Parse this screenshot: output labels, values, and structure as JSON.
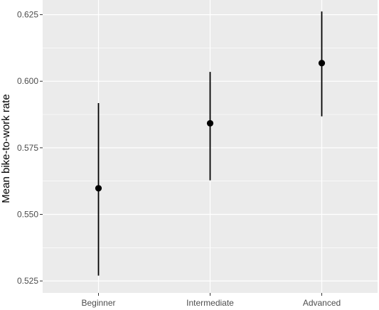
{
  "chart_data": {
    "type": "scatter",
    "subtype": "point-with-error-bars",
    "title": "",
    "xlabel": "",
    "ylabel": "Mean bike-to-work rate",
    "categories": [
      "Beginner",
      "Intermediate",
      "Advanced"
    ],
    "series": [
      {
        "values": [
          0.5598,
          0.5842,
          0.6068
        ],
        "lower": [
          0.527,
          0.5628,
          0.5868
        ],
        "upper": [
          0.5918,
          0.6035,
          0.6262
        ]
      }
    ],
    "ylim": [
      0.5205,
      0.6305
    ],
    "yticks": [
      0.525,
      0.55,
      0.575,
      0.6,
      0.625
    ],
    "ytick_labels": [
      "0.525",
      "0.550",
      "0.575",
      "0.600",
      "0.625"
    ],
    "grid": true,
    "legend": "none",
    "colors": {
      "panel_background": "#ebebeb",
      "gridline": "#ffffff",
      "point": "#000000",
      "errorbar": "#000000",
      "tick_text": "#4d4d4d"
    }
  }
}
